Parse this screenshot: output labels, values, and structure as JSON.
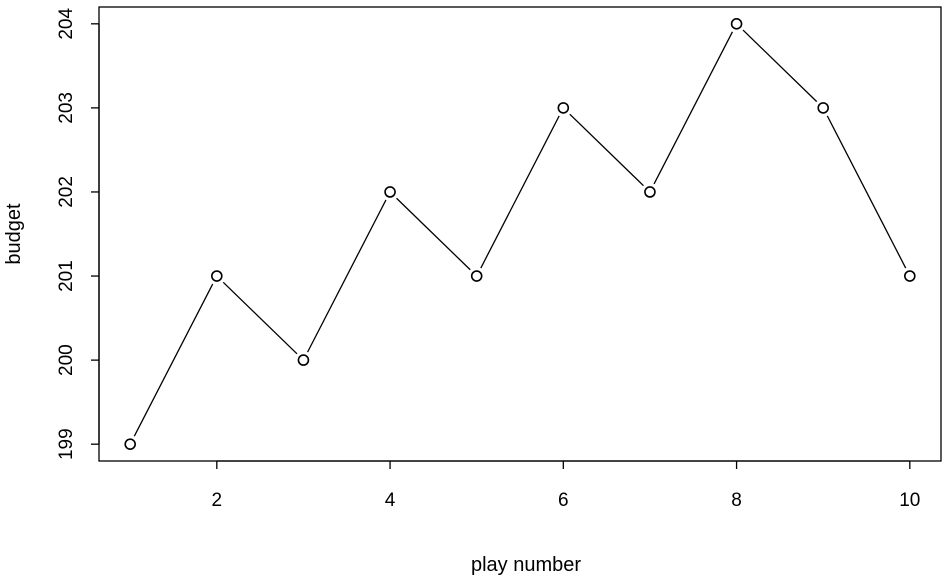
{
  "chart_data": {
    "type": "line",
    "title": "",
    "xlabel": "play number",
    "ylabel": "budget",
    "x": [
      1,
      2,
      3,
      4,
      5,
      6,
      7,
      8,
      9,
      10
    ],
    "series": [
      {
        "values": [
          199,
          201,
          200,
          202,
          201,
          203,
          202,
          204,
          203,
          201
        ]
      }
    ],
    "xlim": [
      0.64,
      10.36
    ],
    "ylim": [
      198.8,
      204.2
    ],
    "xticks": [
      2,
      4,
      6,
      8,
      10
    ],
    "yticks": [
      199,
      200,
      201,
      202,
      203,
      204
    ],
    "grid": false,
    "markers": "open-circle",
    "colors": {
      "line": "#000000",
      "marker_fill": "#ffffff",
      "marker_stroke": "#000000"
    }
  }
}
